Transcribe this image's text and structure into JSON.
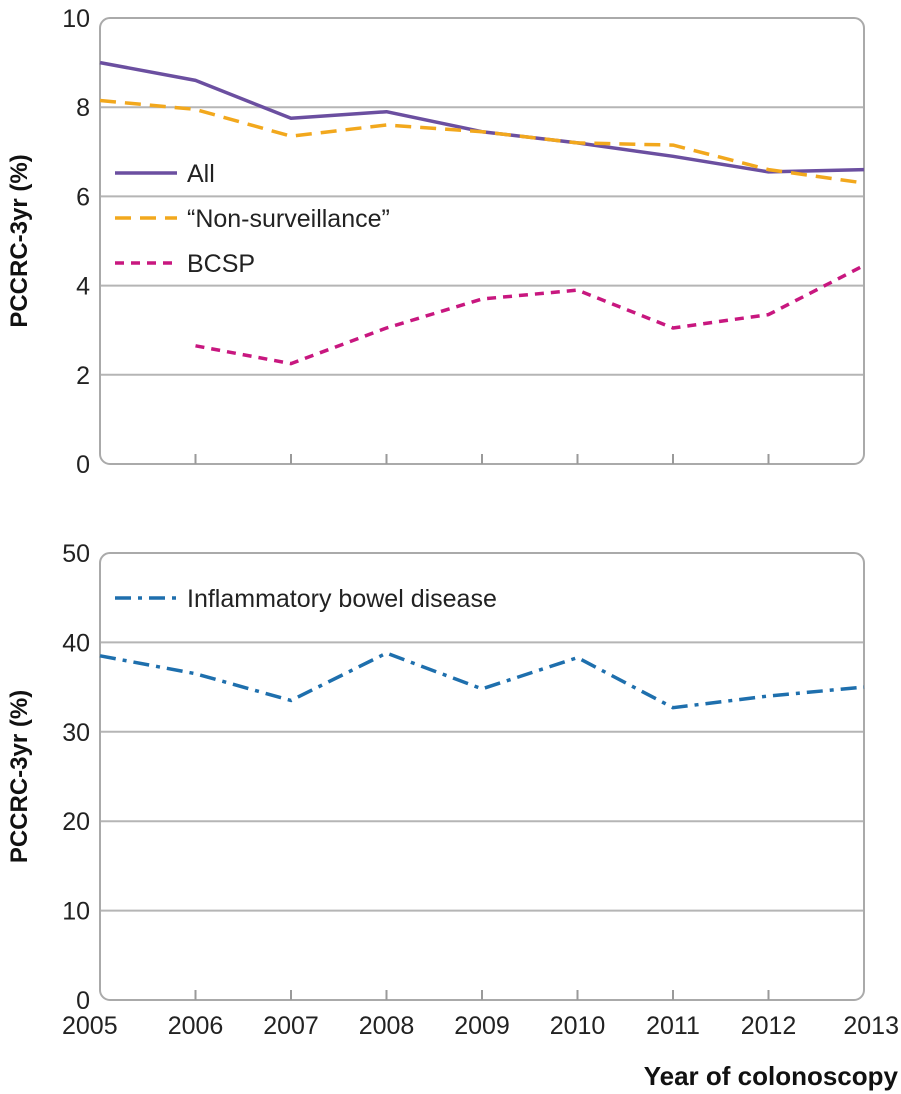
{
  "chart_data": [
    {
      "type": "line",
      "ylabel": "PCCRC-3yr (%)",
      "xlabel": "",
      "ylim": [
        0,
        10
      ],
      "yticks": [
        0,
        2,
        4,
        6,
        8,
        10
      ],
      "x": [
        2005,
        2006,
        2007,
        2008,
        2009,
        2010,
        2011,
        2012,
        2013
      ],
      "grid": "horizontal",
      "legend_position": "middle-left",
      "series": [
        {
          "name": "All",
          "color": "#6b4fa0",
          "style": "solid",
          "values": [
            9.0,
            8.6,
            7.75,
            7.9,
            7.45,
            7.2,
            6.9,
            6.55,
            6.6
          ]
        },
        {
          "name": "“Non-surveillance”",
          "color": "#f2a81d",
          "style": "dashed",
          "values": [
            8.15,
            7.95,
            7.35,
            7.6,
            7.45,
            7.2,
            7.15,
            6.6,
            6.3
          ]
        },
        {
          "name": "BCSP",
          "color": "#c8177f",
          "style": "dotted",
          "values": [
            null,
            2.65,
            2.25,
            3.05,
            3.7,
            3.9,
            3.05,
            3.35,
            4.45
          ]
        }
      ]
    },
    {
      "type": "line",
      "ylabel": "PCCRC-3yr (%)",
      "xlabel": "Year of colonoscopy",
      "ylim": [
        0,
        50
      ],
      "yticks": [
        0,
        10,
        20,
        30,
        40,
        50
      ],
      "x": [
        2005,
        2006,
        2007,
        2008,
        2009,
        2010,
        2011,
        2012,
        2013
      ],
      "grid": "horizontal",
      "legend_position": "top-left",
      "series": [
        {
          "name": "Inflammatory bowel disease",
          "color": "#1e6fad",
          "style": "dashdot",
          "values": [
            38.5,
            36.5,
            33.5,
            38.8,
            34.8,
            38.3,
            32.7,
            34.0,
            35.0
          ]
        }
      ]
    }
  ]
}
